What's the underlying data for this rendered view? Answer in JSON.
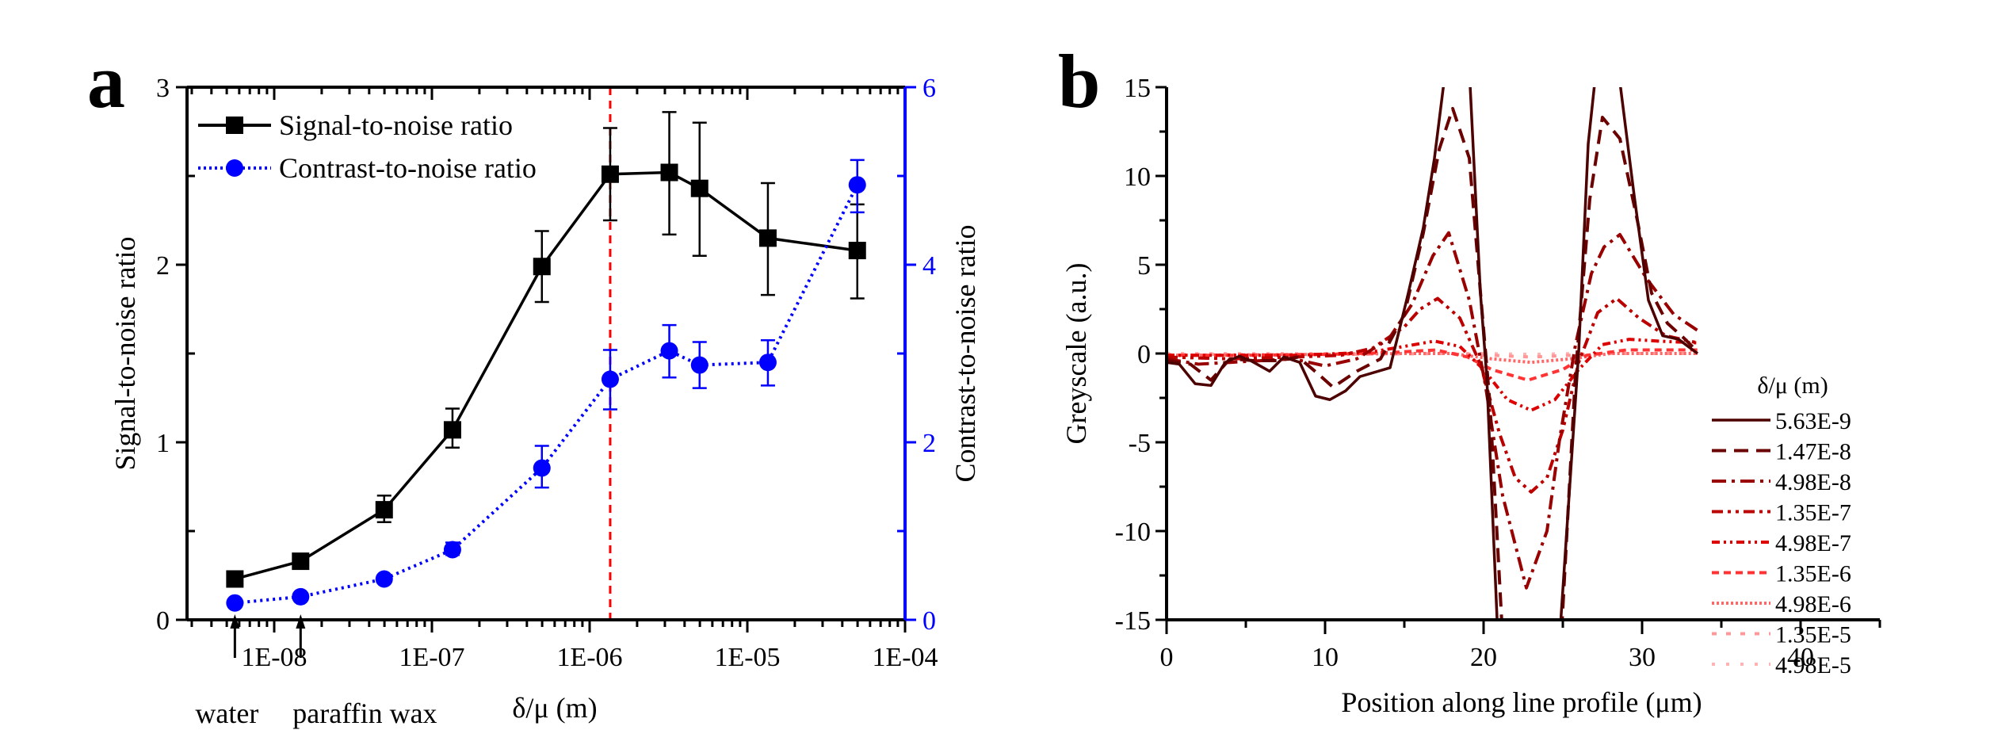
{
  "chart_data": [
    {
      "panel": "a",
      "type": "line",
      "panel_label": "a",
      "xlabel": "δ/μ (m)",
      "xscale": "log",
      "xlim": [
        2.8e-09,
        0.0001
      ],
      "xticks": [
        1e-08,
        1e-07,
        1e-06,
        1e-05,
        0.0001
      ],
      "xtick_labels": [
        "1E-08",
        "1E-07",
        "1E-06",
        "1E-05",
        "1E-04"
      ],
      "ylabel": "Signal-to-noise ratio",
      "ylim": [
        0,
        3
      ],
      "yticks": [
        0,
        1,
        2,
        3
      ],
      "ytick_labels": [
        "0",
        "1",
        "2",
        "3"
      ],
      "y2label": "Contrast-to-noise ratio",
      "y2lim": [
        0,
        6
      ],
      "y2ticks": [
        0,
        2,
        4,
        6
      ],
      "y2tick_labels": [
        "0",
        "2",
        "4",
        "6"
      ],
      "y2_color": "#0000ff",
      "legend_position": "top-left",
      "vline": {
        "x": 1.35e-06,
        "color": "#ff0000",
        "style": "dashed"
      },
      "annotations": [
        {
          "text": "water",
          "x": 5.63e-09,
          "arrow": true
        },
        {
          "text": "paraffin wax",
          "x": 1.47e-08,
          "arrow": true
        }
      ],
      "x": [
        5.63e-09,
        1.47e-08,
        4.98e-08,
        1.35e-07,
        4.98e-07,
        1.35e-06,
        3.2e-06,
        4.98e-06,
        1.35e-05,
        4.98e-05
      ],
      "series": [
        {
          "name": "Signal-to-noise ratio",
          "axis": "left",
          "color": "#000000",
          "marker": "square",
          "line": "solid",
          "values": [
            0.23,
            0.33,
            0.62,
            1.07,
            1.99,
            2.51,
            2.52,
            2.43,
            2.15,
            2.08
          ],
          "err_low": [
            0.23,
            0.33,
            0.55,
            0.97,
            1.79,
            2.25,
            2.17,
            2.05,
            1.83,
            1.81
          ],
          "err_high": [
            0.23,
            0.33,
            0.7,
            1.19,
            2.19,
            2.77,
            2.86,
            2.8,
            2.46,
            2.34
          ]
        },
        {
          "name": "Contrast-to-noise ratio",
          "axis": "right",
          "color": "#0000ff",
          "marker": "circle",
          "line": "dotted",
          "values": [
            0.19,
            0.26,
            0.46,
            0.79,
            1.71,
            2.71,
            3.03,
            2.87,
            2.9,
            4.9
          ],
          "err_low": [
            0.19,
            0.26,
            0.46,
            0.73,
            1.49,
            2.37,
            2.73,
            2.61,
            2.64,
            4.59
          ],
          "err_high": [
            0.19,
            0.26,
            0.46,
            0.87,
            1.96,
            3.04,
            3.32,
            3.13,
            3.15,
            5.18
          ]
        }
      ]
    },
    {
      "panel": "b",
      "type": "line",
      "panel_label": "b",
      "xlabel": "Position along line profile (μm)",
      "ylabel": "Greyscale (a.u.)",
      "xlim": [
        0,
        45
      ],
      "ylim": [
        -15,
        15
      ],
      "xticks": [
        0,
        10,
        20,
        30,
        40
      ],
      "xtick_labels": [
        "0",
        "10",
        "20",
        "30",
        "40"
      ],
      "yticks": [
        -15,
        -10,
        -5,
        0,
        5,
        10,
        15
      ],
      "ytick_labels": [
        "-15",
        "-10",
        "-5",
        "0",
        "5",
        "10",
        "15"
      ],
      "legend_title": "δ/μ (m)",
      "legend_position": "right",
      "series": [
        {
          "name": "5.63E-9",
          "color": "#4d0000",
          "dash": "solid",
          "x": [
            0,
            0.8,
            1.8,
            2.8,
            3.7,
            4.6,
            5.3,
            6.5,
            7.4,
            8.4,
            9.4,
            10.3,
            11.3,
            12.2,
            14.1,
            15.25,
            16.2,
            16.9,
            17.6,
            19.1,
            19.8,
            20.2,
            20.9,
            24.8,
            26.0,
            26.6,
            27.1,
            28.5,
            29.5,
            30.4,
            31.3,
            32.3,
            33.5
          ],
          "y": [
            -0.5,
            -0.6,
            -1.7,
            -1.8,
            -0.5,
            -0.15,
            -0.4,
            -1.0,
            -0.2,
            -0.5,
            -2.4,
            -2.6,
            -2.1,
            -1.3,
            -0.8,
            3.4,
            7.1,
            11.0,
            16,
            16,
            3.4,
            -1.3,
            -16,
            -16,
            0.1,
            11.8,
            16,
            16,
            8.9,
            3.0,
            1.0,
            0.8,
            0.0
          ]
        },
        {
          "name": "1.47E-8",
          "color": "#6b0000",
          "dash": "long-dash",
          "x": [
            0,
            1.5,
            2.8,
            4.0,
            5.5,
            7.0,
            8.3,
            9.5,
            10.5,
            12.0,
            13.5,
            15.0,
            16.2,
            17.2,
            18.05,
            19.1,
            19.9,
            20.4,
            21.2,
            24.9,
            25.8,
            26.7,
            27.5,
            28.6,
            29.7,
            30.6,
            31.6,
            32.6,
            33.5
          ],
          "y": [
            -0.4,
            -0.6,
            -1.5,
            -0.3,
            -0.4,
            -0.4,
            -0.2,
            -1.1,
            -1.9,
            -1.0,
            -0.3,
            2.2,
            6.8,
            11.5,
            13.8,
            11.0,
            2.4,
            -2.8,
            -16,
            -16,
            -1.1,
            8.7,
            13.3,
            12.1,
            7.5,
            3.4,
            1.7,
            0.9,
            0.1
          ]
        },
        {
          "name": "4.98E-8",
          "color": "#990000",
          "dash": "dash-dot",
          "x": [
            0,
            2,
            4,
            6,
            8,
            10,
            12,
            14,
            15.5,
            16.8,
            17.8,
            19.1,
            20.1,
            21.2,
            22.7,
            24.0,
            24.8,
            25.8,
            26.8,
            27.6,
            28.6,
            30.3,
            32.0,
            33.5
          ],
          "y": [
            -0.3,
            -0.6,
            -0.5,
            -0.4,
            -0.3,
            -0.7,
            -0.3,
            0.8,
            2.8,
            5.5,
            6.8,
            3.0,
            -1.7,
            -8.0,
            -13.2,
            -10.0,
            -4.8,
            0.5,
            4.5,
            6.0,
            6.7,
            4.2,
            2.2,
            1.3
          ]
        },
        {
          "name": "1.35E-7",
          "color": "#bb0000",
          "dash": "dash-dot-dot",
          "x": [
            0,
            4,
            8,
            11,
            13,
            15,
            16,
            17.1,
            18.5,
            19.8,
            21.0,
            22.0,
            23.0,
            24.0,
            25.0,
            26.0,
            27.2,
            28.4,
            29.8,
            31.5,
            33.5
          ],
          "y": [
            -0.2,
            -0.3,
            -0.2,
            -0.1,
            0.3,
            1.5,
            2.5,
            3.1,
            2.0,
            -0.6,
            -4.5,
            -7.0,
            -7.8,
            -7.0,
            -4.3,
            -0.5,
            2.3,
            3.1,
            2.0,
            1.0,
            0.6
          ]
        },
        {
          "name": "4.98E-7",
          "color": "#dd0000",
          "dash": "dash-dot-dot-tight",
          "x": [
            0,
            4,
            8,
            11,
            13,
            15,
            16.9,
            18.5,
            20.0,
            21.5,
            23.0,
            24.5,
            26.0,
            27.5,
            29.2,
            31,
            33.5
          ],
          "y": [
            -0.1,
            -0.1,
            -0.1,
            0,
            0.1,
            0.4,
            0.7,
            0.4,
            -0.9,
            -2.6,
            -3.2,
            -2.6,
            -0.9,
            0.5,
            0.8,
            0.7,
            0.6
          ]
        },
        {
          "name": "1.35E-6",
          "color": "#ff3333",
          "dash": "short-dash",
          "x": [
            0,
            5,
            10,
            14,
            17,
            19,
            20.5,
            22.8,
            25,
            26.5,
            29,
            33.5
          ],
          "y": [
            -0.1,
            -0.1,
            -0.05,
            0.05,
            0.2,
            -0.2,
            -0.9,
            -1.5,
            -0.9,
            -0.1,
            0.2,
            0.2
          ]
        },
        {
          "name": "4.98E-6",
          "color": "#ff6666",
          "dash": "dotted",
          "x": [
            0,
            10,
            15,
            18,
            20.5,
            23,
            25.5,
            28,
            33.5
          ],
          "y": [
            -0.1,
            -0.05,
            0,
            0,
            -0.3,
            -0.5,
            -0.3,
            0,
            0
          ]
        },
        {
          "name": "1.35E-5",
          "color": "#ff9999",
          "dash": "sparse-dash",
          "x": [
            0,
            10,
            18,
            20.5,
            23,
            25.5,
            28,
            33.5
          ],
          "y": [
            -0.05,
            -0.05,
            0,
            -0.1,
            -0.2,
            -0.1,
            0,
            0
          ]
        },
        {
          "name": "4.98E-5",
          "color": "#ffb3b3",
          "dash": "sparse-dot",
          "x": [
            0,
            10,
            20,
            23,
            26,
            33.5
          ],
          "y": [
            0,
            0,
            0,
            -0.05,
            0,
            0
          ]
        }
      ]
    }
  ]
}
